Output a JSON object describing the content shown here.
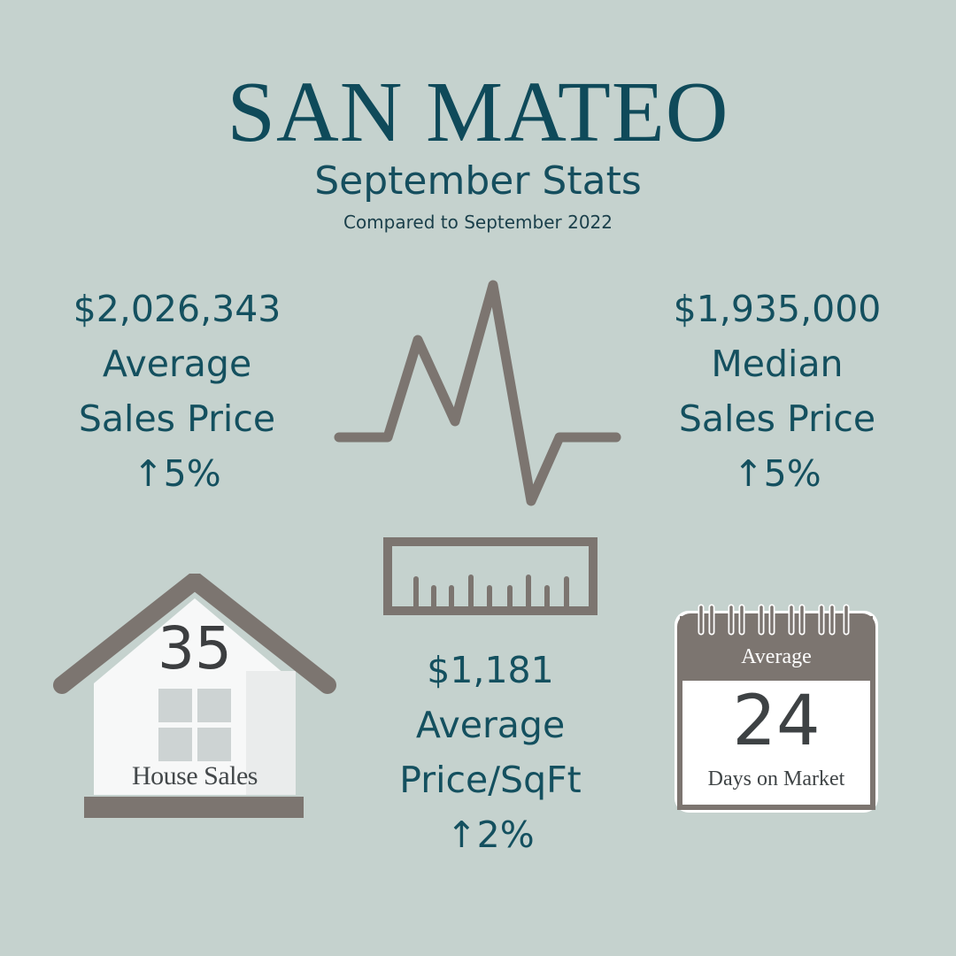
{
  "header": {
    "title": "SAN MATEO",
    "subtitle": "September Stats",
    "comparison": "Compared to September 2022"
  },
  "stats": {
    "average_sales_price": {
      "value": "$2,026,343",
      "label_line1": "Average",
      "label_line2": "Sales Price",
      "change": "↑5%"
    },
    "median_sales_price": {
      "value": "$1,935,000",
      "label_line1": "Median",
      "label_line2": "Sales Price",
      "change": "↑5%"
    },
    "price_per_sqft": {
      "value": "$1,181",
      "label_line1": "Average",
      "label_line2": "Price/SqFt",
      "change": "↑2%"
    }
  },
  "house_sales": {
    "count": "35",
    "label": "House Sales",
    "icon": "house-icon"
  },
  "days_on_market": {
    "header": "Average",
    "count": "24",
    "label": "Days on Market",
    "icon": "calendar-icon"
  },
  "icons": {
    "pulse": "heartbeat-line-icon",
    "ruler": "ruler-icon"
  },
  "colors": {
    "background": "#c5d2ce",
    "text_primary": "#14505f",
    "icon_gray": "#7c7570"
  }
}
